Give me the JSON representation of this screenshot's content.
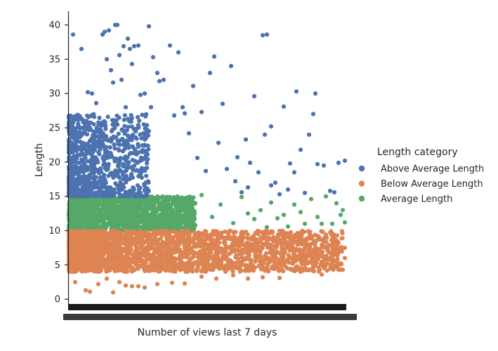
{
  "chart_data": {
    "type": "scatter",
    "xlabel": "Number of views last 7 days",
    "ylabel": "Length",
    "ylim": [
      -1,
      42
    ],
    "yticks": [
      0,
      5,
      10,
      15,
      20,
      25,
      30,
      35,
      40
    ],
    "legend": {
      "title": "Length category",
      "placement": "right"
    },
    "series": [
      {
        "name": "Above Average Length",
        "color": "#4c72b0",
        "points": [
          [
            2,
            38.6
          ],
          [
            6,
            36.5
          ],
          [
            9,
            30.2
          ],
          [
            11,
            30.0
          ],
          [
            13,
            28.6
          ],
          [
            16,
            38.6
          ],
          [
            17,
            39.0
          ],
          [
            18,
            35.0
          ],
          [
            19,
            39.2
          ],
          [
            20,
            33.4
          ],
          [
            21,
            31.6
          ],
          [
            22,
            40.0
          ],
          [
            23,
            40.0
          ],
          [
            24,
            35.6
          ],
          [
            25,
            32.0
          ],
          [
            26,
            36.9
          ],
          [
            27,
            28.0
          ],
          [
            28,
            38.0
          ],
          [
            29,
            36.5
          ],
          [
            30,
            34.3
          ],
          [
            31,
            36.9
          ],
          [
            33,
            37.0
          ],
          [
            34,
            29.8
          ],
          [
            36,
            30.0
          ],
          [
            38,
            39.8
          ],
          [
            39,
            28.0
          ],
          [
            40,
            35.3
          ],
          [
            42,
            33.0
          ],
          [
            43,
            31.8
          ],
          [
            45,
            32.0
          ],
          [
            48,
            37.0
          ],
          [
            50,
            26.8
          ],
          [
            52,
            36.0
          ],
          [
            54,
            28.0
          ],
          [
            55,
            27.1
          ],
          [
            57,
            24.2
          ],
          [
            59,
            31.1
          ],
          [
            61,
            20.6
          ],
          [
            63,
            27.3
          ],
          [
            65,
            18.7
          ],
          [
            67,
            33.0
          ],
          [
            69,
            35.4
          ],
          [
            71,
            22.8
          ],
          [
            73,
            28.5
          ],
          [
            75,
            19.0
          ],
          [
            77,
            34.0
          ],
          [
            79,
            17.2
          ],
          [
            80,
            20.7
          ],
          [
            82,
            15.6
          ],
          [
            84,
            23.3
          ],
          [
            86,
            19.9
          ],
          [
            88,
            29.6
          ],
          [
            90,
            18.5
          ],
          [
            92,
            38.5
          ],
          [
            93,
            24.0
          ],
          [
            94,
            38.6
          ],
          [
            96,
            16.6
          ],
          [
            98,
            17.0
          ],
          [
            100,
            15.3
          ],
          [
            102,
            28.1
          ],
          [
            104,
            16.0
          ],
          [
            105,
            19.8
          ],
          [
            107,
            18.5
          ],
          [
            108,
            30.3
          ],
          [
            110,
            21.8
          ],
          [
            112,
            15.5
          ],
          [
            114,
            24.0
          ],
          [
            116,
            27.0
          ],
          [
            117,
            30.0
          ],
          [
            118,
            19.7
          ],
          [
            121,
            19.5
          ],
          [
            124,
            15.8
          ],
          [
            128,
            19.9
          ],
          [
            131,
            20.2
          ],
          [
            126,
            15.6
          ],
          [
            96,
            25.2
          ],
          [
            85,
            16.3
          ]
        ],
        "dense_band": {
          "x": [
            0,
            38
          ],
          "y": [
            15,
            27
          ]
        }
      },
      {
        "name": "Below Average Length",
        "color": "#dd8452",
        "points": [
          [
            3,
            2.5
          ],
          [
            8,
            1.3
          ],
          [
            10,
            1.1
          ],
          [
            14,
            2.2
          ],
          [
            18,
            3.0
          ],
          [
            21,
            1.0
          ],
          [
            24,
            2.5
          ],
          [
            27,
            2.0
          ],
          [
            30,
            1.9
          ],
          [
            33,
            1.9
          ],
          [
            36,
            1.7
          ],
          [
            42,
            2.2
          ],
          [
            49,
            2.4
          ],
          [
            55,
            2.3
          ],
          [
            63,
            3.3
          ],
          [
            70,
            3.0
          ],
          [
            78,
            3.5
          ],
          [
            85,
            3.0
          ],
          [
            92,
            3.2
          ],
          [
            100,
            3.1
          ],
          [
            110,
            4.0
          ],
          [
            120,
            3.6
          ],
          [
            130,
            4.3
          ],
          [
            131,
            6.0
          ],
          [
            131,
            7.5
          ],
          [
            125,
            8.0
          ]
        ],
        "dense_band": {
          "x": [
            0,
            130
          ],
          "y": [
            4,
            10
          ]
        }
      },
      {
        "name": "Average Length",
        "color": "#55a868",
        "points": [
          [
            60,
            14.0
          ],
          [
            63,
            15.2
          ],
          [
            68,
            12.0
          ],
          [
            72,
            13.8
          ],
          [
            78,
            11.1
          ],
          [
            82,
            14.9
          ],
          [
            85,
            12.5
          ],
          [
            88,
            11.7
          ],
          [
            91,
            13.0
          ],
          [
            94,
            10.5
          ],
          [
            96,
            14.1
          ],
          [
            99,
            11.8
          ],
          [
            102,
            12.3
          ],
          [
            104,
            10.6
          ],
          [
            107,
            13.8
          ],
          [
            110,
            12.7
          ],
          [
            112,
            11.0
          ],
          [
            115,
            14.6
          ],
          [
            118,
            12.0
          ],
          [
            120,
            11.0
          ],
          [
            122,
            15.0
          ],
          [
            125,
            11.0
          ],
          [
            127,
            14.0
          ],
          [
            129,
            12.3
          ],
          [
            130,
            13.0
          ],
          [
            131,
            11.2
          ]
        ],
        "dense_band": {
          "x": [
            0,
            60
          ],
          "y": [
            10,
            15
          ]
        }
      }
    ]
  }
}
